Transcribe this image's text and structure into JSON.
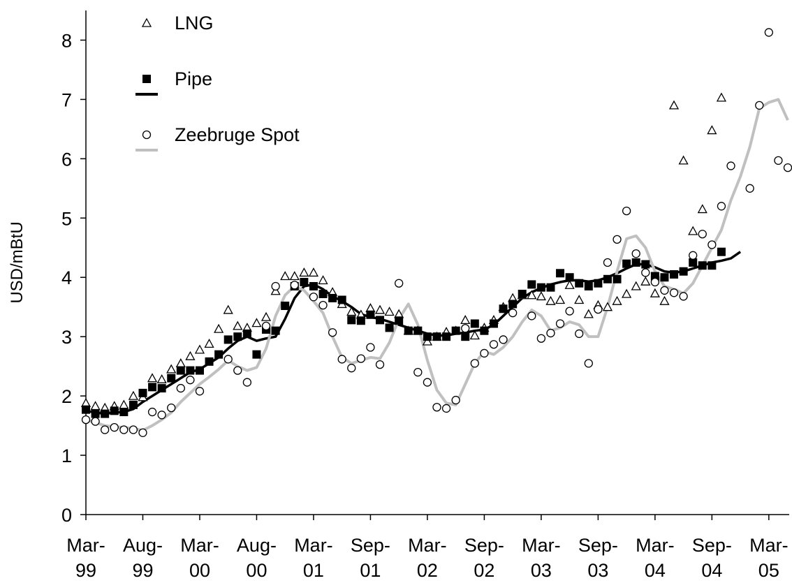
{
  "chart_data": {
    "type": "line",
    "y_label": "USD/mBtU",
    "ylim": [
      0,
      8.5
    ],
    "yticks": [
      0,
      1,
      2,
      3,
      4,
      5,
      6,
      7,
      8
    ],
    "grid": false,
    "legend": "upper left",
    "categories": [
      "Mar-\n99",
      null,
      null,
      null,
      null,
      null,
      "Aug-\n99",
      null,
      null,
      null,
      null,
      null,
      "Mar-\n00",
      null,
      null,
      null,
      null,
      null,
      "Aug-\n00",
      null,
      null,
      null,
      null,
      null,
      "Mar-\n01",
      null,
      null,
      null,
      null,
      null,
      "Sep-\n01",
      null,
      null,
      null,
      null,
      null,
      "Mar-\n02",
      null,
      null,
      null,
      null,
      null,
      "Sep-\n02",
      null,
      null,
      null,
      null,
      null,
      "Mar-\n03",
      null,
      null,
      null,
      null,
      null,
      "Sep-\n03",
      null,
      null,
      null,
      null,
      null,
      "Mar-\n04",
      null,
      null,
      null,
      null,
      null,
      "Sep-\n04",
      null,
      null,
      null,
      null,
      null,
      "Mar-\n05",
      null,
      null
    ],
    "series": [
      {
        "name": "LNG",
        "marker": "triangle",
        "color": "#000000",
        "values": [
          1.88,
          1.83,
          1.8,
          1.83,
          1.85,
          2.0,
          1.98,
          2.3,
          2.28,
          2.45,
          2.55,
          2.67,
          2.78,
          2.88,
          3.13,
          3.45,
          3.18,
          3.15,
          3.23,
          3.33,
          3.77,
          4.02,
          4.02,
          4.08,
          4.08,
          3.95,
          3.75,
          3.55,
          3.42,
          3.37,
          3.48,
          3.45,
          3.42,
          3.38,
          3.1,
          3.1,
          2.92,
          3.0,
          3.08,
          3.1,
          3.28,
          3.02,
          3.15,
          3.28,
          3.5,
          3.65,
          3.7,
          3.7,
          3.68,
          3.6,
          3.62,
          3.87,
          3.62,
          3.38,
          3.53,
          3.5,
          3.6,
          3.72,
          3.85,
          3.93,
          3.73,
          3.6,
          6.9,
          5.97,
          4.78,
          5.15,
          6.48,
          7.03,
          null,
          null,
          null,
          null,
          null,
          null,
          null
        ]
      },
      {
        "name": "Pipe",
        "marker": "square",
        "color": "#000000",
        "line_color": "#000000",
        "values": [
          1.77,
          1.7,
          1.7,
          1.75,
          1.73,
          1.85,
          2.05,
          2.15,
          2.13,
          2.3,
          2.43,
          2.43,
          2.43,
          2.58,
          2.7,
          2.95,
          3.0,
          3.05,
          2.7,
          3.12,
          3.1,
          3.52,
          3.85,
          3.92,
          3.85,
          3.72,
          3.65,
          3.62,
          3.28,
          3.27,
          3.37,
          3.28,
          3.15,
          3.27,
          3.1,
          3.1,
          3.0,
          3.0,
          3.0,
          3.1,
          3.0,
          3.22,
          3.1,
          3.22,
          3.47,
          3.55,
          3.72,
          3.88,
          3.83,
          3.83,
          4.07,
          4.0,
          3.9,
          3.85,
          3.9,
          3.97,
          3.97,
          4.23,
          4.25,
          4.22,
          4.02,
          4.0,
          4.05,
          4.1,
          4.25,
          4.2,
          4.2,
          4.43,
          null,
          null,
          null,
          null,
          null,
          null,
          null
        ],
        "line_values": [
          1.75,
          1.72,
          1.7,
          1.72,
          1.73,
          1.78,
          1.9,
          2.0,
          2.1,
          2.2,
          2.3,
          2.4,
          2.45,
          2.55,
          2.65,
          2.8,
          2.93,
          3.0,
          2.93,
          2.97,
          3.0,
          3.3,
          3.65,
          3.85,
          3.88,
          3.8,
          3.68,
          3.6,
          3.5,
          3.38,
          3.33,
          3.3,
          3.25,
          3.2,
          3.15,
          3.1,
          3.05,
          3.02,
          3.02,
          3.05,
          3.07,
          3.1,
          3.12,
          3.2,
          3.35,
          3.5,
          3.65,
          3.75,
          3.82,
          3.88,
          3.92,
          3.95,
          3.95,
          3.93,
          3.95,
          4.0,
          4.07,
          4.15,
          4.22,
          4.22,
          4.17,
          4.1,
          4.08,
          4.1,
          4.15,
          4.2,
          4.25,
          4.28,
          4.32,
          4.43,
          null,
          null,
          null,
          null,
          null
        ]
      },
      {
        "name": "Zeebruge Spot",
        "marker": "circle",
        "color": "#000000",
        "line_color": "#c0c0c0",
        "values": [
          1.6,
          1.57,
          1.43,
          1.47,
          1.43,
          1.43,
          1.38,
          1.73,
          1.68,
          1.8,
          2.13,
          2.27,
          2.08,
          null,
          null,
          2.62,
          2.43,
          2.23,
          null,
          3.18,
          3.85,
          null,
          3.87,
          null,
          3.67,
          3.53,
          3.07,
          2.62,
          2.47,
          2.63,
          2.82,
          2.53,
          null,
          3.9,
          null,
          2.4,
          2.23,
          1.81,
          1.79,
          1.93,
          3.14,
          2.55,
          2.72,
          2.87,
          2.95,
          3.4,
          null,
          3.35,
          2.97,
          3.06,
          3.22,
          3.43,
          3.05,
          2.55,
          3.46,
          4.25,
          4.64,
          5.12,
          4.4,
          4.08,
          3.92,
          3.78,
          3.74,
          3.68,
          4.37,
          4.73,
          4.55,
          5.2,
          5.88,
          null,
          5.5,
          6.9,
          8.13,
          5.97,
          5.85
        ],
        "line_values": [
          1.6,
          1.55,
          1.5,
          1.48,
          1.47,
          1.45,
          1.42,
          1.5,
          1.6,
          1.72,
          1.9,
          2.05,
          2.2,
          2.32,
          2.45,
          2.6,
          2.5,
          2.43,
          2.48,
          2.8,
          3.35,
          3.7,
          3.85,
          3.78,
          3.6,
          3.4,
          3.0,
          2.65,
          2.55,
          2.6,
          2.65,
          2.63,
          2.9,
          3.3,
          3.55,
          3.2,
          2.6,
          2.1,
          1.88,
          1.85,
          2.2,
          2.55,
          2.75,
          2.7,
          2.82,
          3.0,
          3.25,
          3.45,
          3.35,
          3.1,
          3.15,
          3.25,
          3.2,
          3.0,
          3.0,
          3.5,
          4.1,
          4.65,
          4.7,
          4.5,
          4.1,
          3.85,
          3.8,
          3.73,
          3.9,
          4.2,
          4.5,
          4.8,
          5.3,
          5.7,
          6.2,
          6.85,
          6.95,
          7.0,
          6.65
        ]
      }
    ]
  }
}
